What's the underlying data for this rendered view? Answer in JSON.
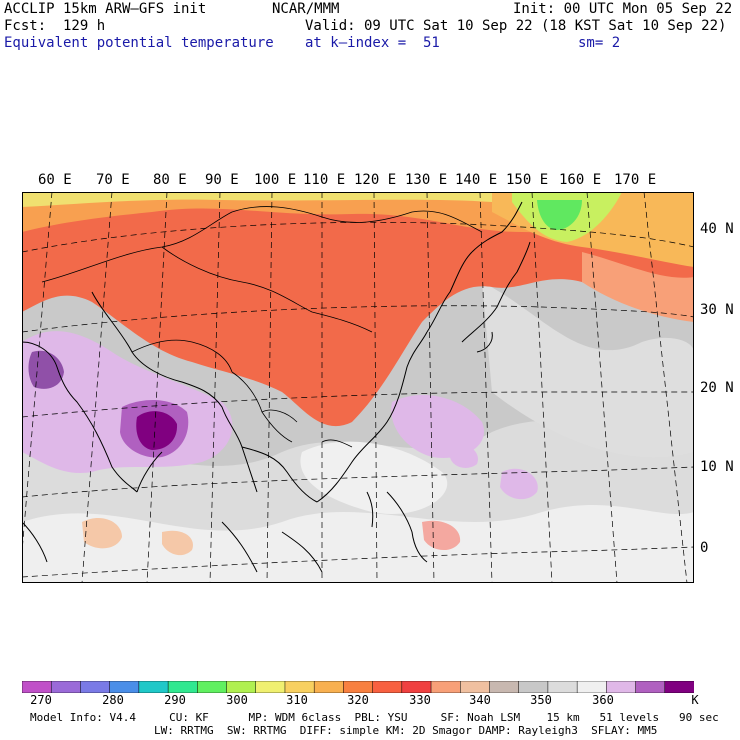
{
  "header": {
    "model_line": "ACCLIP 15km ARW—GFS init",
    "center": "NCAR/MMM",
    "init": "Init: 00 UTC Mon 05 Sep 22",
    "fcst": "Fcst:  129 h",
    "valid": "Valid: 09 UTC Sat 10 Sep 22 (18 KST Sat 10 Sep 22)",
    "field": "Equivalent potential temperature",
    "level": "at k—index =  51",
    "smooth": "sm= 2"
  },
  "map": {
    "lon_labels": [
      "60 E",
      "70 E",
      "80 E",
      "90 E",
      "100 E",
      "110 E",
      "120 E",
      "130 E",
      "140 E",
      "150 E",
      "160 E",
      "170 E"
    ],
    "lat_labels": [
      "40 N",
      "30 N",
      "20 N",
      "10 N",
      "0"
    ]
  },
  "colorbar": {
    "unit": "K",
    "tick_labels": [
      "270",
      "280",
      "290",
      "300",
      "310",
      "320",
      "330",
      "340",
      "350",
      "360"
    ],
    "colors": [
      "#c050c8",
      "#9a6ad8",
      "#7a7ae6",
      "#4a8ee8",
      "#20c8c8",
      "#30e890",
      "#60f060",
      "#b0f050",
      "#f0f070",
      "#f8d060",
      "#f8b050",
      "#f88040",
      "#f86040",
      "#f04040",
      "#f8a078",
      "#f0c0a0",
      "#c8b8b0",
      "#c8c8c8",
      "#dcdcdc",
      "#f0f0f0",
      "#e0b8e8",
      "#b060c0",
      "#800080"
    ]
  },
  "footer": {
    "line1": "Model Info: V4.4     CU: KF      MP: WDM 6class  PBL: YSU     SF: Noah LSM    15 km   51 levels   90 sec",
    "line2": "LW: RRTMG  SW: RRTMG  DIFF: simple KM: 2D Smagor DAMP: Rayleigh3  SFLAY: MM5"
  }
}
